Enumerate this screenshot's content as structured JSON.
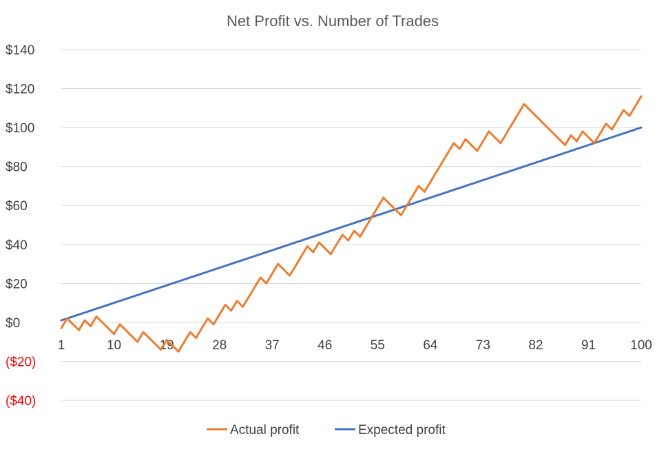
{
  "chart_data": {
    "type": "line",
    "title": "Net Profit vs. Number of Trades",
    "xlabel": "",
    "ylabel": "",
    "x": [
      1,
      2,
      3,
      4,
      5,
      6,
      7,
      8,
      9,
      10,
      11,
      12,
      13,
      14,
      15,
      16,
      17,
      18,
      19,
      20,
      21,
      22,
      23,
      24,
      25,
      26,
      27,
      28,
      29,
      30,
      31,
      32,
      33,
      34,
      35,
      36,
      37,
      38,
      39,
      40,
      41,
      42,
      43,
      44,
      45,
      46,
      47,
      48,
      49,
      50,
      51,
      52,
      53,
      54,
      55,
      56,
      57,
      58,
      59,
      60,
      61,
      62,
      63,
      64,
      65,
      66,
      67,
      68,
      69,
      70,
      71,
      72,
      73,
      74,
      75,
      76,
      77,
      78,
      79,
      80,
      81,
      82,
      83,
      84,
      85,
      86,
      87,
      88,
      89,
      90,
      91,
      92,
      93,
      94,
      95,
      96,
      97,
      98,
      99,
      100
    ],
    "x_tick_labels": [
      "1",
      "10",
      "19",
      "28",
      "37",
      "46",
      "55",
      "64",
      "73",
      "82",
      "91",
      "100"
    ],
    "x_tick_values": [
      1,
      10,
      19,
      28,
      37,
      46,
      55,
      64,
      73,
      82,
      91,
      100
    ],
    "y_ticks": [
      {
        "value": 140,
        "label": "$140",
        "color": "#404040"
      },
      {
        "value": 120,
        "label": "$120",
        "color": "#404040"
      },
      {
        "value": 100,
        "label": "$100",
        "color": "#404040"
      },
      {
        "value": 80,
        "label": "$80",
        "color": "#404040"
      },
      {
        "value": 60,
        "label": "$60",
        "color": "#404040"
      },
      {
        "value": 40,
        "label": "$40",
        "color": "#404040"
      },
      {
        "value": 20,
        "label": "$20",
        "color": "#404040"
      },
      {
        "value": 0,
        "label": "$0",
        "color": "#404040"
      },
      {
        "value": -20,
        "label": "($20)",
        "color": "#ff0000"
      },
      {
        "value": -40,
        "label": "($40)",
        "color": "#ff0000"
      }
    ],
    "ylim": [
      -40,
      140
    ],
    "grid": true,
    "legend_position": "bottom",
    "series": [
      {
        "name": "Actual profit",
        "color": "#ed7d31",
        "values": [
          -3,
          2,
          -1,
          -4,
          1,
          -2,
          3,
          0,
          -3,
          -6,
          -1,
          -4,
          -7,
          -10,
          -5,
          -8,
          -11,
          -14,
          -9,
          -12,
          -15,
          -10,
          -5,
          -8,
          -3,
          2,
          -1,
          4,
          9,
          6,
          11,
          8,
          13,
          18,
          23,
          20,
          25,
          30,
          27,
          24,
          29,
          34,
          39,
          36,
          41,
          38,
          35,
          40,
          45,
          42,
          47,
          44,
          49,
          54,
          59,
          64,
          61,
          58,
          55,
          60,
          65,
          70,
          67,
          72,
          77,
          82,
          87,
          92,
          89,
          94,
          91,
          88,
          93,
          98,
          95,
          92,
          97,
          102,
          107,
          112,
          109,
          106,
          103,
          100,
          97,
          94,
          91,
          96,
          93,
          98,
          95,
          92,
          97,
          102,
          99,
          104,
          109,
          106,
          111,
          116
        ]
      },
      {
        "name": "Expected profit",
        "color": "#4472c4",
        "values": [
          1,
          2,
          3,
          4,
          5,
          6,
          7,
          8,
          9,
          10,
          11,
          12,
          13,
          14,
          15,
          16,
          17,
          18,
          19,
          20,
          21,
          22,
          23,
          24,
          25,
          26,
          27,
          28,
          29,
          30,
          31,
          32,
          33,
          34,
          35,
          36,
          37,
          38,
          39,
          40,
          41,
          42,
          43,
          44,
          45,
          46,
          47,
          48,
          49,
          50,
          51,
          52,
          53,
          54,
          55,
          56,
          57,
          58,
          59,
          60,
          61,
          62,
          63,
          64,
          65,
          66,
          67,
          68,
          69,
          70,
          71,
          72,
          73,
          74,
          75,
          76,
          77,
          78,
          79,
          80,
          81,
          82,
          83,
          84,
          85,
          86,
          87,
          88,
          89,
          90,
          91,
          92,
          93,
          94,
          95,
          96,
          97,
          98,
          99,
          100
        ]
      }
    ]
  }
}
